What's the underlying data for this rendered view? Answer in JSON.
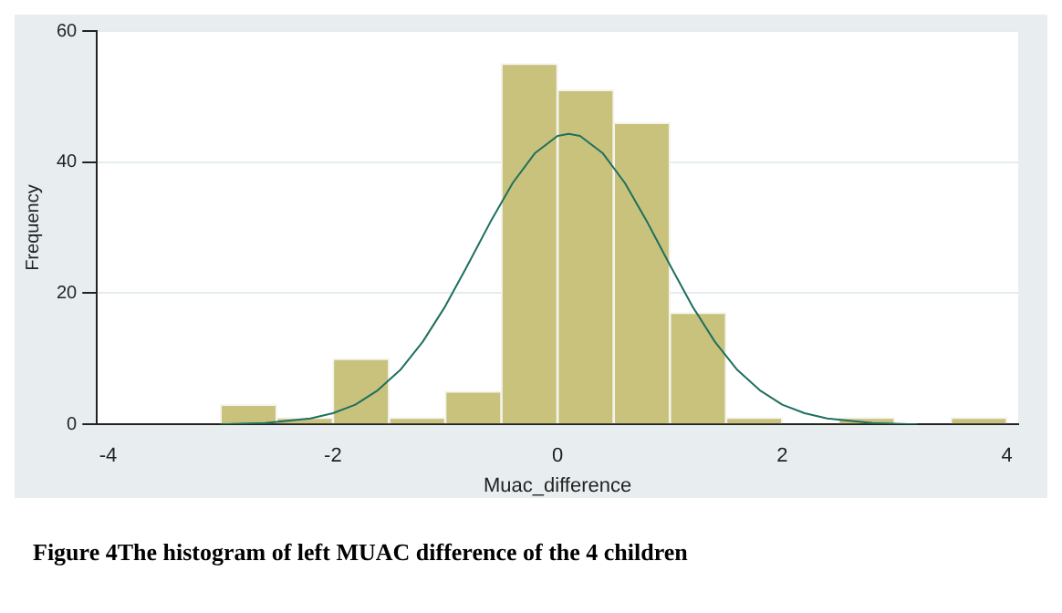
{
  "chart_data": {
    "type": "histogram",
    "xlabel": "Muac_difference",
    "ylabel": "Frequency",
    "bins": [
      -3,
      -2.5,
      -2,
      -1.5,
      -1,
      -0.5,
      0,
      0.5,
      1,
      1.5,
      2,
      2.5,
      3,
      3.5,
      4
    ],
    "values": [
      3,
      1,
      10,
      1,
      5,
      55,
      51,
      46,
      17,
      1,
      0,
      1,
      0,
      1
    ],
    "color": "#c8c27c",
    "series": [
      {
        "type": "line",
        "color": "#1f6f5f",
        "x": [
          -3,
          -2.6,
          -2.2,
          -2,
          -1.8,
          -1.6,
          -1.4,
          -1.2,
          -1,
          -0.8,
          -0.6,
          -0.4,
          -0.2,
          0,
          0.1,
          0.2,
          0.4,
          0.6,
          0.8,
          1,
          1.2,
          1.4,
          1.6,
          1.8,
          2,
          2.2,
          2.4,
          2.8,
          3.2
        ],
        "values": [
          0,
          0.2,
          0.9,
          1.7,
          3,
          5.2,
          8.3,
          12.6,
          18,
          24.3,
          30.8,
          36.8,
          41.4,
          44,
          44.3,
          44,
          41.4,
          36.8,
          30.8,
          24.3,
          18,
          12.6,
          8.3,
          5.2,
          3,
          1.7,
          0.9,
          0.2,
          0
        ]
      }
    ],
    "xlim": [
      -4.1,
      4.1
    ],
    "xticks": [
      -4,
      -2,
      0,
      2,
      4
    ],
    "ylim": [
      0,
      60
    ],
    "yticks": [
      0,
      20,
      40,
      60
    ],
    "grid": "y",
    "annotations": [
      "Figure 4The histogram of left MUAC difference of the 4 children"
    ]
  }
}
